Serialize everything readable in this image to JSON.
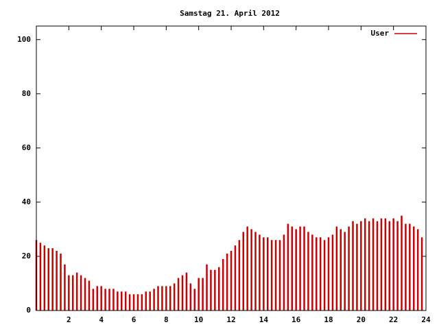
{
  "chart_data": {
    "type": "impulse",
    "title": "Samstag 21. April 2012",
    "series": [
      {
        "name": "User",
        "color": "#cc0000",
        "values": [
          26,
          25,
          24,
          23,
          23,
          22,
          21,
          17,
          13,
          13,
          14,
          13,
          12,
          11,
          8,
          9,
          9,
          8,
          8,
          8,
          7,
          7,
          7,
          6,
          6,
          6,
          6,
          7,
          7,
          8,
          9,
          9,
          9,
          9,
          10,
          12,
          13,
          14,
          10,
          8,
          12,
          12,
          17,
          15,
          15,
          16,
          19,
          21,
          22,
          24,
          26,
          29,
          31,
          30,
          29,
          28,
          27,
          27,
          26,
          26,
          26,
          28,
          32,
          31,
          30,
          31,
          31,
          29,
          28,
          27,
          27,
          26,
          27,
          28,
          31,
          30,
          29,
          31,
          33,
          32,
          33,
          34,
          33,
          34,
          33,
          34,
          34,
          33,
          34,
          33,
          35,
          32,
          32,
          31,
          30,
          27
        ]
      }
    ],
    "x": [
      0,
      0.25,
      0.5,
      0.75,
      1,
      1.25,
      1.5,
      1.75,
      2,
      2.25,
      2.5,
      2.75,
      3,
      3.25,
      3.5,
      3.75,
      4,
      4.25,
      4.5,
      4.75,
      5,
      5.25,
      5.5,
      5.75,
      6,
      6.25,
      6.5,
      6.75,
      7,
      7.25,
      7.5,
      7.75,
      8,
      8.25,
      8.5,
      8.75,
      9,
      9.25,
      9.5,
      9.75,
      10,
      10.25,
      10.5,
      10.75,
      11,
      11.25,
      11.5,
      11.75,
      12,
      12.25,
      12.5,
      12.75,
      13,
      13.25,
      13.5,
      13.75,
      14,
      14.25,
      14.5,
      14.75,
      15,
      15.25,
      15.5,
      15.75,
      16,
      16.25,
      16.5,
      16.75,
      17,
      17.25,
      17.5,
      17.75,
      18,
      18.25,
      18.5,
      18.75,
      19,
      19.25,
      19.5,
      19.75,
      20,
      20.25,
      20.5,
      20.75,
      21,
      21.25,
      21.5,
      21.75,
      22,
      22.25,
      22.5,
      22.75,
      23,
      23.25,
      23.5,
      23.75
    ],
    "xlim": [
      0,
      24
    ],
    "xticks": [
      2,
      4,
      6,
      8,
      10,
      12,
      14,
      16,
      18,
      20,
      22,
      24
    ],
    "ylim": [
      0,
      105
    ],
    "yticks": [
      0,
      20,
      40,
      60,
      80,
      100
    ],
    "legend": "top-right"
  }
}
